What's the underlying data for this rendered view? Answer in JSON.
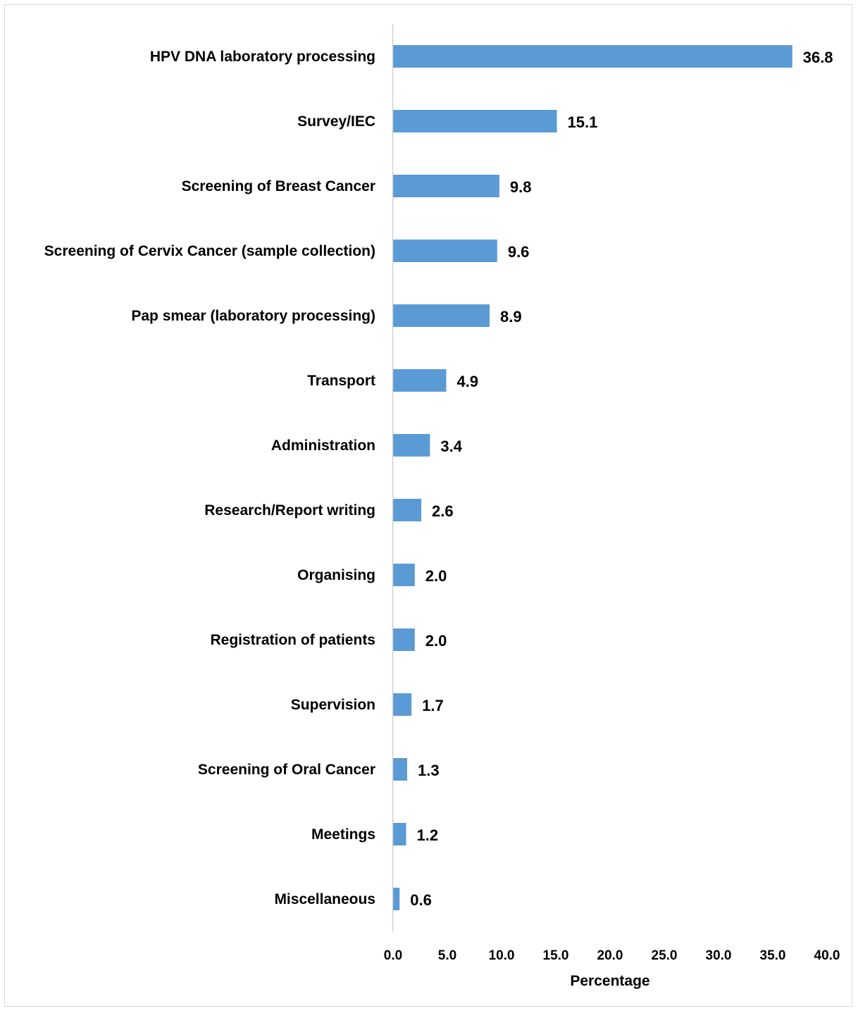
{
  "chart_data": {
    "type": "bar",
    "orientation": "horizontal",
    "title": "",
    "xlabel": "Percentage",
    "ylabel": "",
    "xlim": [
      0,
      40
    ],
    "xticks": [
      "0.0",
      "5.0",
      "10.0",
      "15.0",
      "20.0",
      "25.0",
      "30.0",
      "35.0",
      "40.0"
    ],
    "grid": false,
    "legend": "none",
    "bar_color": "#5b9bd5",
    "categories": [
      "HPV DNA laboratory processing",
      "Survey/IEC",
      "Screening of Breast Cancer",
      "Screening of Cervix Cancer (sample collection)",
      "Pap smear (laboratory processing)",
      "Transport",
      "Administration",
      "Research/Report writing",
      "Organising",
      "Registration of patients",
      "Supervision",
      "Screening of Oral Cancer",
      "Meetings",
      "Miscellaneous"
    ],
    "values": [
      36.8,
      15.1,
      9.8,
      9.6,
      8.9,
      4.9,
      3.4,
      2.6,
      2.0,
      2.0,
      1.7,
      1.3,
      1.2,
      0.6
    ],
    "value_labels": [
      "36.8",
      "15.1",
      "9.8",
      "9.6",
      "8.9",
      "4.9",
      "3.4",
      "2.6",
      "2.0",
      "2.0",
      "1.7",
      "1.3",
      "1.2",
      "0.6"
    ]
  }
}
